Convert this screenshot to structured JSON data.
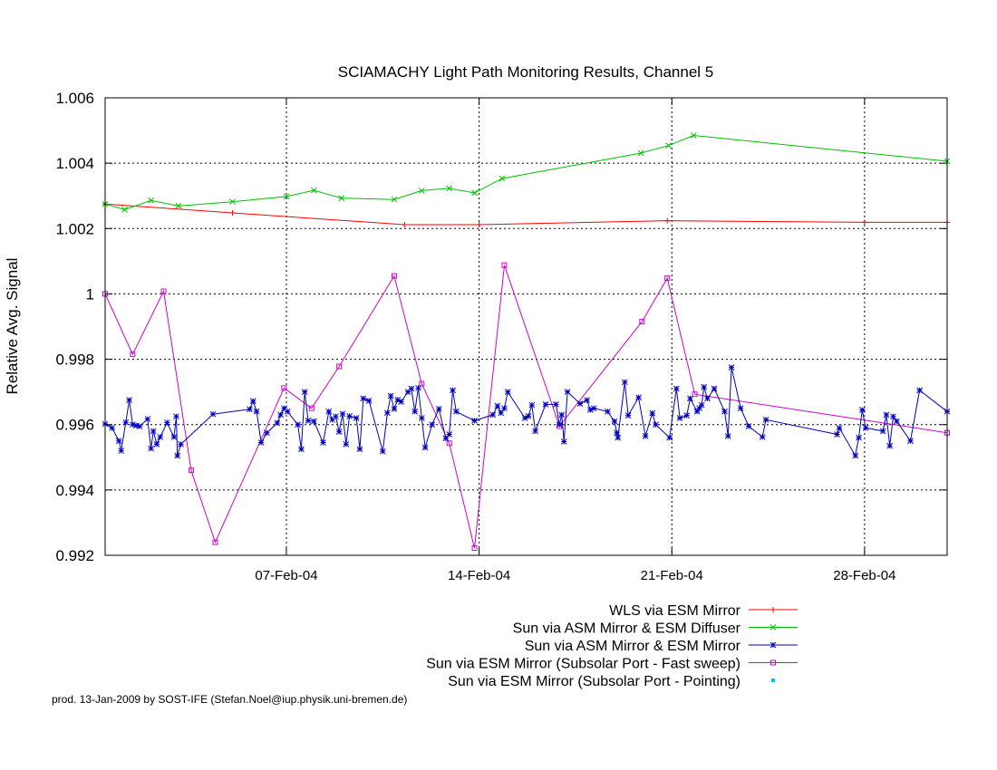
{
  "chart_data": {
    "type": "line",
    "title": "SCIAMACHY Light Path Monitoring Results, Channel 5",
    "xlabel": "",
    "ylabel": "Relative Avg. Signal",
    "xlim": [
      "2004-01-31T10:00",
      "2004-03-02T00:00"
    ],
    "ylim": [
      0.992,
      1.006
    ],
    "y_ticks": [
      "0.992",
      "0.994",
      "0.996",
      "0.998",
      "1",
      "1.002",
      "1.004",
      "1.006"
    ],
    "y_tick_values": [
      0.992,
      0.994,
      0.996,
      0.998,
      1.0,
      1.002,
      1.004,
      1.006
    ],
    "x_ticks": [
      {
        "date": "2004-02-07",
        "label": "07-Feb-04"
      },
      {
        "date": "2004-02-14",
        "label": "14-Feb-04"
      },
      {
        "date": "2004-02-21",
        "label": "21-Feb-04"
      },
      {
        "date": "2004-02-28",
        "label": "28-Feb-04"
      }
    ],
    "grid": true,
    "legend_position": "below",
    "series": [
      {
        "name": "WLS via ESM Mirror",
        "color": "#ff0000",
        "marker": "plus",
        "points": [
          [
            "2004-01-31T10:00",
            1.00275
          ],
          [
            "2004-02-05T01:00",
            1.00248
          ],
          [
            "2004-02-11T07:00",
            1.00212
          ],
          [
            "2004-02-14T00:00",
            1.00212
          ],
          [
            "2004-02-20T20:00",
            1.00224
          ],
          [
            "2004-02-28T00:00",
            1.00219
          ],
          [
            "2004-03-02T00:00",
            1.00219
          ]
        ]
      },
      {
        "name": "Sun via ASM Mirror & ESM Diffuser",
        "color": "#00c000",
        "marker": "cross",
        "points": [
          [
            "2004-01-31T10:00",
            1.00275
          ],
          [
            "2004-02-01T03:00",
            1.00258
          ],
          [
            "2004-02-02T02:00",
            1.00286
          ],
          [
            "2004-02-03T02:00",
            1.00269
          ],
          [
            "2004-02-05T01:00",
            1.00282
          ],
          [
            "2004-02-07T00:00",
            1.00298
          ],
          [
            "2004-02-08T00:00",
            1.00317
          ],
          [
            "2004-02-09T00:00",
            1.00293
          ],
          [
            "2004-02-10T22:00",
            1.00289
          ],
          [
            "2004-02-11T22:00",
            1.00316
          ],
          [
            "2004-02-12T22:00",
            1.00323
          ],
          [
            "2004-02-13T20:00",
            1.00309
          ],
          [
            "2004-02-14T20:00",
            1.00353
          ],
          [
            "2004-02-19T21:00",
            1.00431
          ],
          [
            "2004-02-20T21:00",
            1.00454
          ],
          [
            "2004-02-21T19:00",
            1.00485
          ],
          [
            "2004-03-02T00:00",
            1.00406
          ]
        ]
      },
      {
        "name": "Sun via ASM Mirror & ESM Mirror",
        "color": "#0000c0",
        "marker": "star",
        "points": [
          [
            "2004-01-31T10:00",
            0.99602
          ],
          [
            "2004-01-31T16:00",
            0.9959
          ],
          [
            "2004-01-31T22:00",
            0.9955
          ],
          [
            "2004-02-01T00:00",
            0.9952
          ],
          [
            "2004-02-01T04:00",
            0.99607
          ],
          [
            "2004-02-01T07:00",
            0.99675
          ],
          [
            "2004-02-01T10:00",
            0.996
          ],
          [
            "2004-02-01T13:00",
            0.99597
          ],
          [
            "2004-02-01T16:00",
            0.99595
          ],
          [
            "2004-02-01T23:00",
            0.99617
          ],
          [
            "2004-02-02T02:00",
            0.99527
          ],
          [
            "2004-02-02T04:00",
            0.9958
          ],
          [
            "2004-02-02T07:00",
            0.9954
          ],
          [
            "2004-02-02T10:00",
            0.99562
          ],
          [
            "2004-02-02T16:00",
            0.99606
          ],
          [
            "2004-02-02T22:00",
            0.99562
          ],
          [
            "2004-02-03T00:00",
            0.99625
          ],
          [
            "2004-02-03T01:00",
            0.99505
          ],
          [
            "2004-02-03T04:00",
            0.9954
          ],
          [
            "2004-02-04T08:00",
            0.99632
          ],
          [
            "2004-02-05T16:00",
            0.99647
          ],
          [
            "2004-02-05T19:00",
            0.99672
          ],
          [
            "2004-02-05T22:00",
            0.9964
          ],
          [
            "2004-02-06T02:00",
            0.99545
          ],
          [
            "2004-02-06T07:00",
            0.99575
          ],
          [
            "2004-02-06T16:00",
            0.99605
          ],
          [
            "2004-02-06T19:00",
            0.9963
          ],
          [
            "2004-02-06T22:00",
            0.9965
          ],
          [
            "2004-02-07T01:00",
            0.9964
          ],
          [
            "2004-02-07T10:00",
            0.996
          ],
          [
            "2004-02-07T13:00",
            0.99525
          ],
          [
            "2004-02-07T16:00",
            0.997
          ],
          [
            "2004-02-07T19:00",
            0.99612
          ],
          [
            "2004-02-08T00:00",
            0.9961
          ],
          [
            "2004-02-08T08:00",
            0.99545
          ],
          [
            "2004-02-08T13:00",
            0.9964
          ],
          [
            "2004-02-08T16:00",
            0.99615
          ],
          [
            "2004-02-08T19:00",
            0.99625
          ],
          [
            "2004-02-08T22:00",
            0.99578
          ],
          [
            "2004-02-09T01:00",
            0.99633
          ],
          [
            "2004-02-09T04:00",
            0.9954
          ],
          [
            "2004-02-09T07:00",
            0.99626
          ],
          [
            "2004-02-09T13:00",
            0.9962
          ],
          [
            "2004-02-09T16:00",
            0.99525
          ],
          [
            "2004-02-09T19:00",
            0.9968
          ],
          [
            "2004-02-10T00:00",
            0.99673
          ],
          [
            "2004-02-10T12:00",
            0.99518
          ],
          [
            "2004-02-10T16:00",
            0.99636
          ],
          [
            "2004-02-10T19:00",
            0.99688
          ],
          [
            "2004-02-10T22:00",
            0.99648
          ],
          [
            "2004-02-11T01:00",
            0.99676
          ],
          [
            "2004-02-11T04:00",
            0.9967
          ],
          [
            "2004-02-11T10:00",
            0.997
          ],
          [
            "2004-02-11T13:00",
            0.9971
          ],
          [
            "2004-02-11T16:00",
            0.9964
          ],
          [
            "2004-02-11T19:00",
            0.99712
          ],
          [
            "2004-02-11T22:00",
            0.9962
          ],
          [
            "2004-02-12T01:00",
            0.9953
          ],
          [
            "2004-02-12T07:00",
            0.996
          ],
          [
            "2004-02-12T13:00",
            0.99648
          ],
          [
            "2004-02-12T19:00",
            0.99558
          ],
          [
            "2004-02-12T22:00",
            0.9957
          ],
          [
            "2004-02-13T01:00",
            0.99705
          ],
          [
            "2004-02-13T04:00",
            0.9964
          ],
          [
            "2004-02-13T20:00",
            0.99612
          ],
          [
            "2004-02-14T12:00",
            0.9963
          ],
          [
            "2004-02-14T16:00",
            0.99657
          ],
          [
            "2004-02-14T19:00",
            0.99636
          ],
          [
            "2004-02-14T22:00",
            0.9965
          ],
          [
            "2004-02-15T01:00",
            0.997
          ],
          [
            "2004-02-15T16:00",
            0.9962
          ],
          [
            "2004-02-15T19:00",
            0.99626
          ],
          [
            "2004-02-15T22:00",
            0.9966
          ],
          [
            "2004-02-16T01:00",
            0.9958
          ],
          [
            "2004-02-16T10:00",
            0.99662
          ],
          [
            "2004-02-16T19:00",
            0.99662
          ],
          [
            "2004-02-16T22:00",
            0.996
          ],
          [
            "2004-02-17T00:00",
            0.9963
          ],
          [
            "2004-02-17T02:00",
            0.99548
          ],
          [
            "2004-02-17T05:00",
            0.997
          ],
          [
            "2004-02-17T16:00",
            0.99664
          ],
          [
            "2004-02-17T22:00",
            0.99675
          ],
          [
            "2004-02-18T01:00",
            0.99645
          ],
          [
            "2004-02-18T04:00",
            0.9965
          ],
          [
            "2004-02-18T16:00",
            0.9964
          ],
          [
            "2004-02-18T22:00",
            0.9961
          ],
          [
            "2004-02-19T00:00",
            0.99575
          ],
          [
            "2004-02-19T01:00",
            0.9956
          ],
          [
            "2004-02-19T07:00",
            0.9973
          ],
          [
            "2004-02-19T10:00",
            0.99628
          ],
          [
            "2004-02-19T19:00",
            0.99683
          ],
          [
            "2004-02-20T01:00",
            0.99565
          ],
          [
            "2004-02-20T07:00",
            0.99635
          ],
          [
            "2004-02-20T10:00",
            0.996
          ],
          [
            "2004-02-20T22:00",
            0.9956
          ],
          [
            "2004-02-21T04:00",
            0.9971
          ],
          [
            "2004-02-21T07:00",
            0.9962
          ],
          [
            "2004-02-21T13:00",
            0.99628
          ],
          [
            "2004-02-21T16:00",
            0.9968
          ],
          [
            "2004-02-21T22:00",
            0.9964
          ],
          [
            "2004-02-22T00:00",
            0.9965
          ],
          [
            "2004-02-22T02:00",
            0.9966
          ],
          [
            "2004-02-22T04:00",
            0.99715
          ],
          [
            "2004-02-22T07:00",
            0.9968
          ],
          [
            "2004-02-22T13:00",
            0.9971
          ],
          [
            "2004-02-22T22:00",
            0.9964
          ],
          [
            "2004-02-23T01:00",
            0.99565
          ],
          [
            "2004-02-23T04:00",
            0.99775
          ],
          [
            "2004-02-23T12:00",
            0.9965
          ],
          [
            "2004-02-23T19:00",
            0.99595
          ],
          [
            "2004-02-24T07:00",
            0.99562
          ],
          [
            "2004-02-24T10:00",
            0.99615
          ],
          [
            "2004-02-27T00:00",
            0.9957
          ],
          [
            "2004-02-27T02:00",
            0.9959
          ],
          [
            "2004-02-27T16:00",
            0.99505
          ],
          [
            "2004-02-27T19:00",
            0.9956
          ],
          [
            "2004-02-27T22:00",
            0.99645
          ],
          [
            "2004-02-28T01:00",
            0.9959
          ],
          [
            "2004-02-28T16:00",
            0.9958
          ],
          [
            "2004-02-28T19:00",
            0.9963
          ],
          [
            "2004-02-28T22:00",
            0.99535
          ],
          [
            "2004-02-29T01:00",
            0.99625
          ],
          [
            "2004-02-29T04:00",
            0.9961
          ],
          [
            "2004-02-29T16:00",
            0.9955
          ],
          [
            "2004-03-01T00:00",
            0.99705
          ],
          [
            "2004-03-02T00:00",
            0.9964
          ]
        ]
      },
      {
        "name": "Sun via ESM Mirror (Subsolar Port - Fast sweep)",
        "color": "#d000d0",
        "marker": "square",
        "points": [
          [
            "2004-01-31T10:00",
            1.0
          ],
          [
            "2004-02-01T10:00",
            0.99815
          ],
          [
            "2004-02-02T13:00",
            1.00008
          ],
          [
            "2004-02-03T13:00",
            0.9946
          ],
          [
            "2004-02-04T10:00",
            0.9924
          ],
          [
            "2004-02-06T22:00",
            0.99712
          ],
          [
            "2004-02-07T22:00",
            0.9965
          ],
          [
            "2004-02-08T22:00",
            0.99778
          ],
          [
            "2004-02-10T22:00",
            1.00055
          ],
          [
            "2004-02-11T22:00",
            0.99725
          ],
          [
            "2004-02-12T22:00",
            0.99543
          ],
          [
            "2004-02-13T20:00",
            0.99222
          ],
          [
            "2004-02-14T22:00",
            1.00088
          ],
          [
            "2004-02-16T22:00",
            0.99595
          ],
          [
            "2004-02-19T22:00",
            0.99915
          ],
          [
            "2004-02-20T20:00",
            1.00048
          ],
          [
            "2004-02-21T20:00",
            0.99693
          ],
          [
            "2004-03-02T00:00",
            0.99575
          ]
        ]
      },
      {
        "name": "Sun via ESM Mirror (Subsolar Port - Pointing)",
        "color": "#00c0ff",
        "marker": "dot",
        "points": []
      }
    ]
  },
  "footer": {
    "text": "prod. 13-Jan-2009 by SOST-IFE (Stefan.Noel@iup.physik.uni-bremen.de)"
  }
}
